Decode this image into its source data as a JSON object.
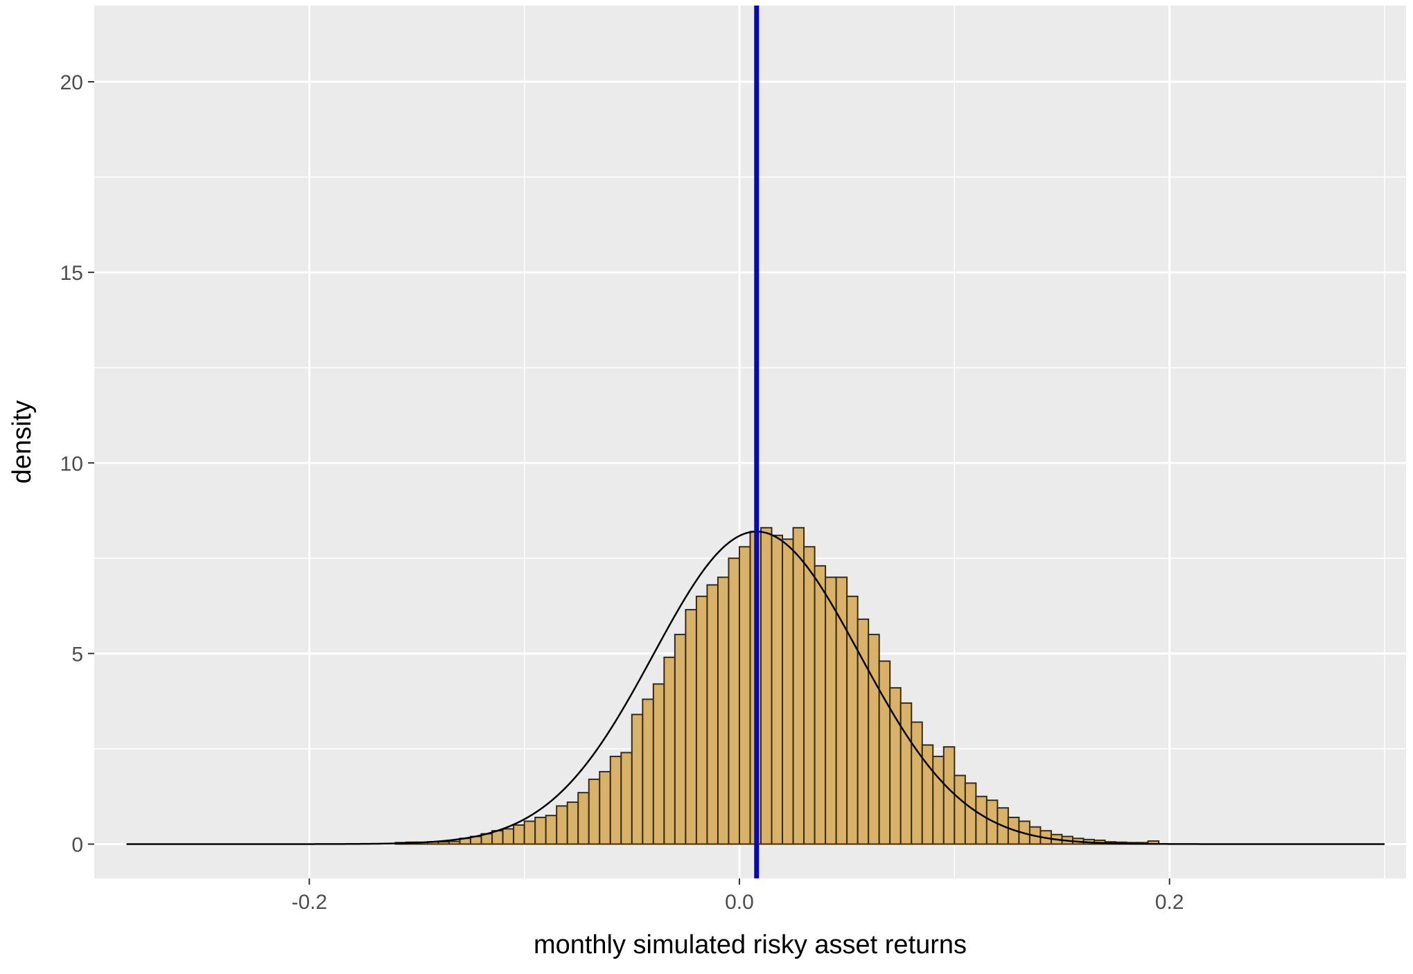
{
  "chart_data": {
    "type": "bar",
    "subtype": "histogram with density curve",
    "title": "",
    "xlabel": "monthly simulated risky asset returns",
    "ylabel": "density",
    "xlim": [
      -0.3,
      0.31
    ],
    "ylim": [
      -0.9,
      22
    ],
    "x_ticks": [
      -0.2,
      0.0,
      0.2
    ],
    "x_tick_labels": [
      "-0.2",
      "0.0",
      "0.2"
    ],
    "y_ticks": [
      0,
      5,
      10,
      15,
      20
    ],
    "y_tick_labels": [
      "0",
      "5",
      "10",
      "15",
      "20"
    ],
    "grid": true,
    "legend": "none",
    "bin_width": 0.005,
    "bins": [
      {
        "x0": -0.16,
        "density": 0.04
      },
      {
        "x0": -0.155,
        "density": 0.05
      },
      {
        "x0": -0.15,
        "density": 0.05
      },
      {
        "x0": -0.145,
        "density": 0.06
      },
      {
        "x0": -0.14,
        "density": 0.06
      },
      {
        "x0": -0.135,
        "density": 0.07
      },
      {
        "x0": -0.13,
        "density": 0.15
      },
      {
        "x0": -0.125,
        "density": 0.2
      },
      {
        "x0": -0.12,
        "density": 0.27
      },
      {
        "x0": -0.115,
        "density": 0.35
      },
      {
        "x0": -0.11,
        "density": 0.4
      },
      {
        "x0": -0.105,
        "density": 0.5
      },
      {
        "x0": -0.1,
        "density": 0.6
      },
      {
        "x0": -0.095,
        "density": 0.7
      },
      {
        "x0": -0.09,
        "density": 0.75
      },
      {
        "x0": -0.085,
        "density": 1.0
      },
      {
        "x0": -0.08,
        "density": 1.1
      },
      {
        "x0": -0.075,
        "density": 1.35
      },
      {
        "x0": -0.07,
        "density": 1.7
      },
      {
        "x0": -0.065,
        "density": 1.9
      },
      {
        "x0": -0.06,
        "density": 2.3
      },
      {
        "x0": -0.055,
        "density": 2.4
      },
      {
        "x0": -0.05,
        "density": 3.4
      },
      {
        "x0": -0.045,
        "density": 3.8
      },
      {
        "x0": -0.04,
        "density": 4.2
      },
      {
        "x0": -0.035,
        "density": 4.9
      },
      {
        "x0": -0.03,
        "density": 5.5
      },
      {
        "x0": -0.025,
        "density": 6.15
      },
      {
        "x0": -0.02,
        "density": 6.5
      },
      {
        "x0": -0.015,
        "density": 6.8
      },
      {
        "x0": -0.01,
        "density": 7.0
      },
      {
        "x0": -0.005,
        "density": 7.5
      },
      {
        "x0": 0.0,
        "density": 7.8
      },
      {
        "x0": 0.005,
        "density": 8.2
      },
      {
        "x0": 0.01,
        "density": 8.3
      },
      {
        "x0": 0.015,
        "density": 8.1
      },
      {
        "x0": 0.02,
        "density": 8.0
      },
      {
        "x0": 0.025,
        "density": 8.3
      },
      {
        "x0": 0.03,
        "density": 7.8
      },
      {
        "x0": 0.035,
        "density": 7.3
      },
      {
        "x0": 0.04,
        "density": 7.0
      },
      {
        "x0": 0.045,
        "density": 7.0
      },
      {
        "x0": 0.05,
        "density": 6.5
      },
      {
        "x0": 0.055,
        "density": 5.9
      },
      {
        "x0": 0.06,
        "density": 5.5
      },
      {
        "x0": 0.065,
        "density": 4.8
      },
      {
        "x0": 0.07,
        "density": 4.1
      },
      {
        "x0": 0.075,
        "density": 3.7
      },
      {
        "x0": 0.08,
        "density": 3.2
      },
      {
        "x0": 0.085,
        "density": 2.6
      },
      {
        "x0": 0.09,
        "density": 2.3
      },
      {
        "x0": 0.095,
        "density": 2.55
      },
      {
        "x0": 0.1,
        "density": 1.8
      },
      {
        "x0": 0.105,
        "density": 1.6
      },
      {
        "x0": 0.11,
        "density": 1.25
      },
      {
        "x0": 0.115,
        "density": 1.15
      },
      {
        "x0": 0.12,
        "density": 0.95
      },
      {
        "x0": 0.125,
        "density": 0.7
      },
      {
        "x0": 0.13,
        "density": 0.6
      },
      {
        "x0": 0.135,
        "density": 0.45
      },
      {
        "x0": 0.14,
        "density": 0.35
      },
      {
        "x0": 0.145,
        "density": 0.25
      },
      {
        "x0": 0.15,
        "density": 0.2
      },
      {
        "x0": 0.155,
        "density": 0.15
      },
      {
        "x0": 0.16,
        "density": 0.12
      },
      {
        "x0": 0.165,
        "density": 0.1
      },
      {
        "x0": 0.17,
        "density": 0.06
      },
      {
        "x0": 0.175,
        "density": 0.05
      },
      {
        "x0": 0.18,
        "density": 0.04
      },
      {
        "x0": 0.185,
        "density": 0.04
      },
      {
        "x0": 0.19,
        "density": 0.08
      }
    ],
    "density_curve": {
      "x_range": [
        -0.285,
        0.3
      ],
      "mean": 0.008,
      "sd": 0.048,
      "peak": 8.2
    },
    "vline": {
      "x": 0.008
    },
    "colors": {
      "panel_background": "#ebebeb",
      "grid": "#ffffff",
      "bar_fill": "#d9b26a",
      "bar_outline": "#3a2b10",
      "density_curve": "#000000",
      "vline": "#0a0aa8",
      "tick_label": "#4d4d4d",
      "axis_title": "#000000"
    }
  }
}
